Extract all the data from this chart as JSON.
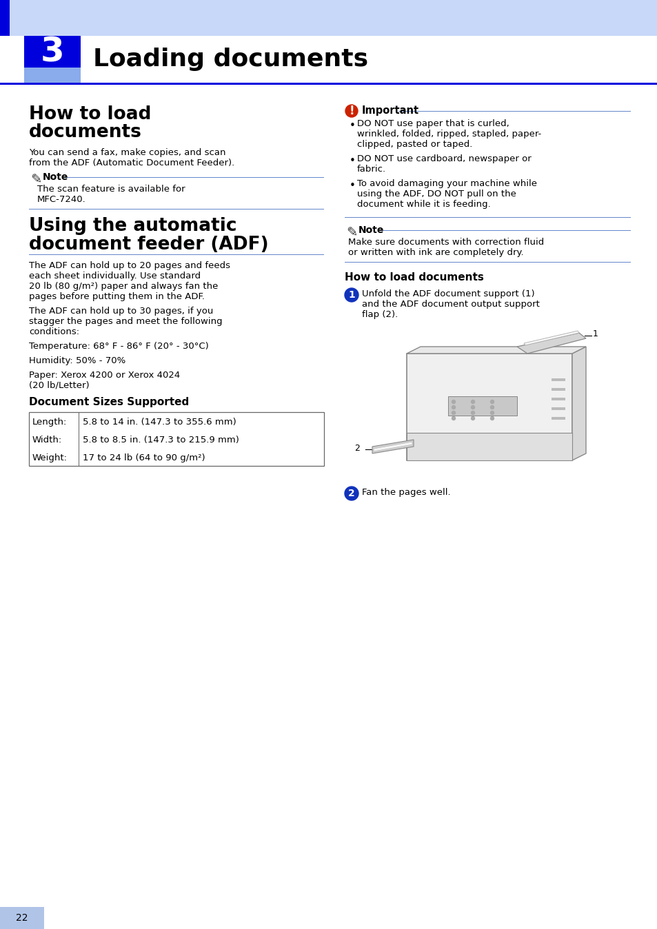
{
  "page_bg": "#ffffff",
  "header_light_blue": "#c8d8f8",
  "header_blue": "#0000dd",
  "blue_line": "#6688cc",
  "chapter_num": "3",
  "chapter_title": "Loading documents",
  "s1_title_line1": "How to load",
  "s1_title_line2": "documents",
  "s1_body": [
    "You can send a fax, make copies, and scan",
    "from the ADF (Automatic Document Feeder)."
  ],
  "note1_text": [
    "The scan feature is available for",
    "MFC-7240."
  ],
  "s2_title_line1": "Using the automatic",
  "s2_title_line2": "document feeder (ADF)",
  "s2_body": [
    "The ADF can hold up to 20 pages and feeds",
    "each sheet individually. Use standard",
    "20 lb (80 g/m²) paper and always fan the",
    "pages before putting them in the ADF.",
    "",
    "The ADF can hold up to 30 pages, if you",
    "stagger the pages and meet the following",
    "conditions:",
    "",
    "Temperature: 68° F - 86° F (20° - 30°C)",
    "",
    "Humidity: 50% - 70%",
    "",
    "Paper: Xerox 4200 or Xerox 4024",
    "(20 lb/Letter)"
  ],
  "doc_sizes_title": "Document Sizes Supported",
  "table_rows": [
    [
      "Length:",
      "5.8 to 14 in. (147.3 to 355.6 mm)"
    ],
    [
      "Width:",
      "5.8 to 8.5 in. (147.3 to 215.9 mm)"
    ],
    [
      "Weight:",
      "17 to 24 lb (64 to 90 g/m²)"
    ]
  ],
  "imp_label": "Important",
  "imp_bullets": [
    [
      "DO NOT use paper that is curled,",
      "wrinkled, folded, ripped, stapled, paper-",
      "clipped, pasted or taped."
    ],
    [
      "DO NOT use cardboard, newspaper or",
      "fabric."
    ],
    [
      "To avoid damaging your machine while",
      "using the ADF, DO NOT pull on the",
      "document while it is feeding."
    ]
  ],
  "note2_text": [
    "Make sure documents with correction fluid",
    "or written with ink are completely dry."
  ],
  "htl_title": "How to load documents",
  "step1_text": [
    "Unfold the ADF document support (1)",
    "and the ADF document output support",
    "flap (2)."
  ],
  "step2_text": [
    "Fan the pages well."
  ],
  "page_num": "22",
  "footer_blue": "#b0c4e8"
}
